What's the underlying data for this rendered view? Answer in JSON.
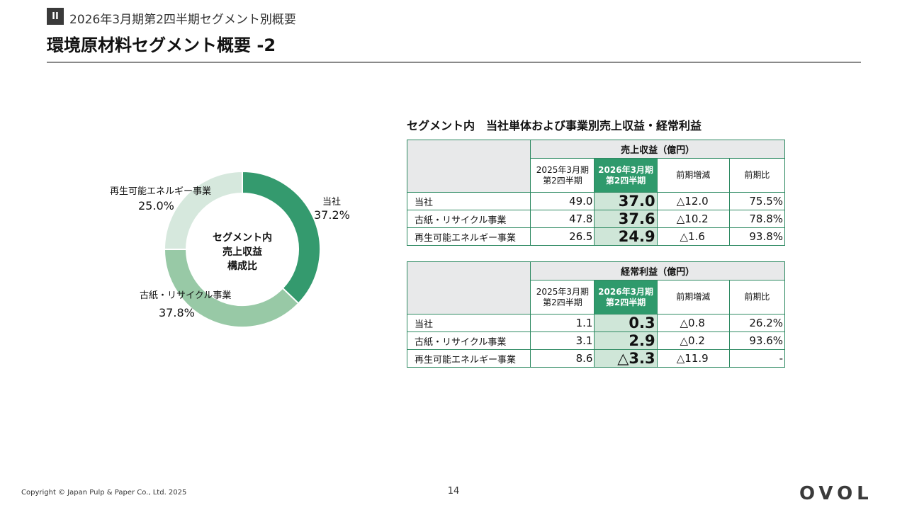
{
  "header": {
    "section_badge": "II",
    "section_title": "2026年3月期第2四半期セグメント別概要",
    "page_title": "環境原材料セグメント概要 -2"
  },
  "colors": {
    "accent_green": "#2f9a6c",
    "highlight_cell": "#cfe6d8",
    "header_grey": "#e8e9ea",
    "donut_slices": [
      "#349a6e",
      "#98c9a6",
      "#d6e8dd"
    ]
  },
  "chart_data": {
    "type": "pie",
    "style": "donut",
    "center_label_lines": [
      "セグメント内",
      "売上収益",
      "構成比"
    ],
    "slices": [
      {
        "label": "当社",
        "value": 37.2,
        "value_label": "37.2%"
      },
      {
        "label": "古紙・リサイクル事業",
        "value": 37.8,
        "value_label": "37.8%"
      },
      {
        "label": "再生可能エネルギー事業",
        "value": 25.0,
        "value_label": "25.0%"
      }
    ]
  },
  "tables": {
    "title": "セグメント内　当社単体および事業別売上収益・経常利益",
    "columns": {
      "prev": [
        "2025年3月期",
        "第2四半期"
      ],
      "curr": [
        "2026年3月期",
        "第2四半期"
      ],
      "change": "前期増減",
      "ratio": "前期比"
    },
    "revenue": {
      "header": "売上収益（億円）",
      "rows": [
        {
          "label": "当社",
          "prev": "49.0",
          "curr": "37.0",
          "change": "△12.0",
          "ratio": "75.5%"
        },
        {
          "label": "古紙・リサイクル事業",
          "prev": "47.8",
          "curr": "37.6",
          "change": "△10.2",
          "ratio": "78.8%"
        },
        {
          "label": "再生可能エネルギー事業",
          "prev": "26.5",
          "curr": "24.9",
          "change": "△1.6",
          "ratio": "93.8%"
        }
      ]
    },
    "profit": {
      "header": "経常利益（億円）",
      "rows": [
        {
          "label": "当社",
          "prev": "1.1",
          "curr": "0.3",
          "change": "△0.8",
          "ratio": "26.2%"
        },
        {
          "label": "古紙・リサイクル事業",
          "prev": "3.1",
          "curr": "2.9",
          "change": "△0.2",
          "ratio": "93.6%"
        },
        {
          "label": "再生可能エネルギー事業",
          "prev": "8.6",
          "curr": "△3.3",
          "change": "△11.9",
          "ratio": "-"
        }
      ]
    }
  },
  "footer": {
    "copyright": "Copyright © Japan Pulp & Paper Co., Ltd. 2025",
    "page_number": "14",
    "logo_text": "OVOL"
  }
}
